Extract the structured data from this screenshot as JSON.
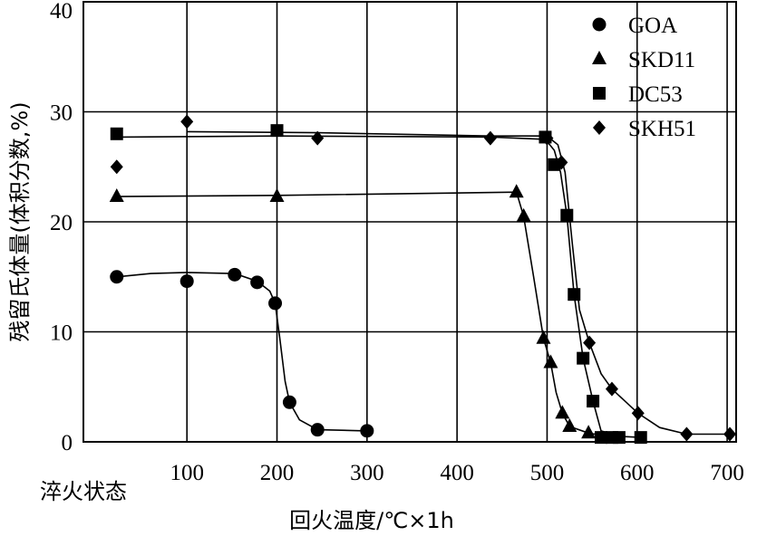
{
  "chart_data": {
    "type": "line",
    "ylabel": "残留氏体量(体积分数,%)",
    "xlabel": "回火温度/℃×1h",
    "x_ticks": [
      {
        "value": 0,
        "label": "淬火状态"
      },
      {
        "value": 100,
        "label": "100"
      },
      {
        "value": 200,
        "label": "200"
      },
      {
        "value": 300,
        "label": "300"
      },
      {
        "value": 400,
        "label": "400"
      },
      {
        "value": 500,
        "label": "500"
      },
      {
        "value": 600,
        "label": "600"
      },
      {
        "value": 700,
        "label": "700"
      }
    ],
    "y_ticks": [
      {
        "value": 0,
        "label": "0"
      },
      {
        "value": 10,
        "label": "10"
      },
      {
        "value": 20,
        "label": "20"
      },
      {
        "value": 30,
        "label": "30"
      },
      {
        "value": 40,
        "label": "40"
      }
    ],
    "xlim": [
      -15,
      710
    ],
    "ylim": [
      0,
      40
    ],
    "grid": true,
    "legend_position": "top-right",
    "series": [
      {
        "name": "GOA",
        "marker": "circle",
        "points": [
          [
            22,
            15.0
          ],
          [
            100,
            14.6
          ],
          [
            153,
            15.2
          ],
          [
            178,
            14.5
          ],
          [
            198,
            12.6
          ],
          [
            214,
            3.6
          ],
          [
            245,
            1.1
          ],
          [
            300,
            1.0
          ]
        ],
        "curve": [
          [
            22,
            15.0
          ],
          [
            60,
            15.3
          ],
          [
            100,
            15.4
          ],
          [
            153,
            15.3
          ],
          [
            178,
            14.6
          ],
          [
            192,
            13.7
          ],
          [
            198,
            12.6
          ],
          [
            203,
            9.5
          ],
          [
            209,
            5.5
          ],
          [
            214,
            3.6
          ],
          [
            225,
            2.0
          ],
          [
            245,
            1.1
          ],
          [
            300,
            1.0
          ]
        ]
      },
      {
        "name": "SKD11",
        "marker": "triangle",
        "points": [
          [
            22,
            22.3
          ],
          [
            200,
            22.3
          ],
          [
            466,
            22.7
          ],
          [
            474,
            20.5
          ],
          [
            496,
            9.4
          ],
          [
            504,
            7.2
          ],
          [
            517,
            2.6
          ],
          [
            525,
            1.4
          ],
          [
            546,
            0.8
          ]
        ],
        "curve": [
          [
            22,
            22.3
          ],
          [
            200,
            22.4
          ],
          [
            466,
            22.7
          ],
          [
            474,
            20.5
          ],
          [
            485,
            15.0
          ],
          [
            496,
            9.4
          ],
          [
            504,
            7.2
          ],
          [
            510,
            4.5
          ],
          [
            517,
            2.6
          ],
          [
            525,
            1.4
          ],
          [
            546,
            0.8
          ],
          [
            560,
            0.6
          ]
        ]
      },
      {
        "name": "DC53",
        "marker": "square",
        "points": [
          [
            22,
            28.0
          ],
          [
            200,
            28.3
          ],
          [
            498,
            27.7
          ],
          [
            508,
            25.2
          ],
          [
            522,
            20.6
          ],
          [
            530,
            13.4
          ],
          [
            540,
            7.6
          ],
          [
            551,
            3.7
          ],
          [
            560,
            0.4
          ],
          [
            572,
            0.4
          ],
          [
            580,
            0.4
          ],
          [
            604,
            0.4
          ]
        ],
        "curve": [
          [
            22,
            27.7
          ],
          [
            200,
            27.8
          ],
          [
            440,
            27.7
          ],
          [
            498,
            27.5
          ],
          [
            508,
            26.5
          ],
          [
            515,
            24.5
          ],
          [
            522,
            20.6
          ],
          [
            530,
            13.4
          ],
          [
            540,
            7.6
          ],
          [
            551,
            3.7
          ],
          [
            560,
            1.0
          ],
          [
            580,
            0.5
          ],
          [
            604,
            0.4
          ]
        ]
      },
      {
        "name": "SKH51",
        "marker": "diamond",
        "points": [
          [
            22,
            25.0
          ],
          [
            100,
            29.1
          ],
          [
            245,
            27.6
          ],
          [
            437,
            27.6
          ],
          [
            500,
            27.6
          ],
          [
            516,
            25.4
          ],
          [
            547,
            9.0
          ],
          [
            572,
            4.8
          ],
          [
            601,
            2.6
          ],
          [
            655,
            0.7
          ],
          [
            703,
            0.7
          ]
        ],
        "curve": [
          [
            100,
            28.2
          ],
          [
            245,
            28.1
          ],
          [
            437,
            27.8
          ],
          [
            500,
            27.8
          ],
          [
            512,
            27.0
          ],
          [
            520,
            24.5
          ],
          [
            528,
            18.0
          ],
          [
            536,
            12.0
          ],
          [
            547,
            9.0
          ],
          [
            560,
            6.2
          ],
          [
            572,
            4.8
          ],
          [
            601,
            2.6
          ],
          [
            625,
            1.3
          ],
          [
            655,
            0.7
          ],
          [
            703,
            0.7
          ]
        ]
      }
    ]
  }
}
